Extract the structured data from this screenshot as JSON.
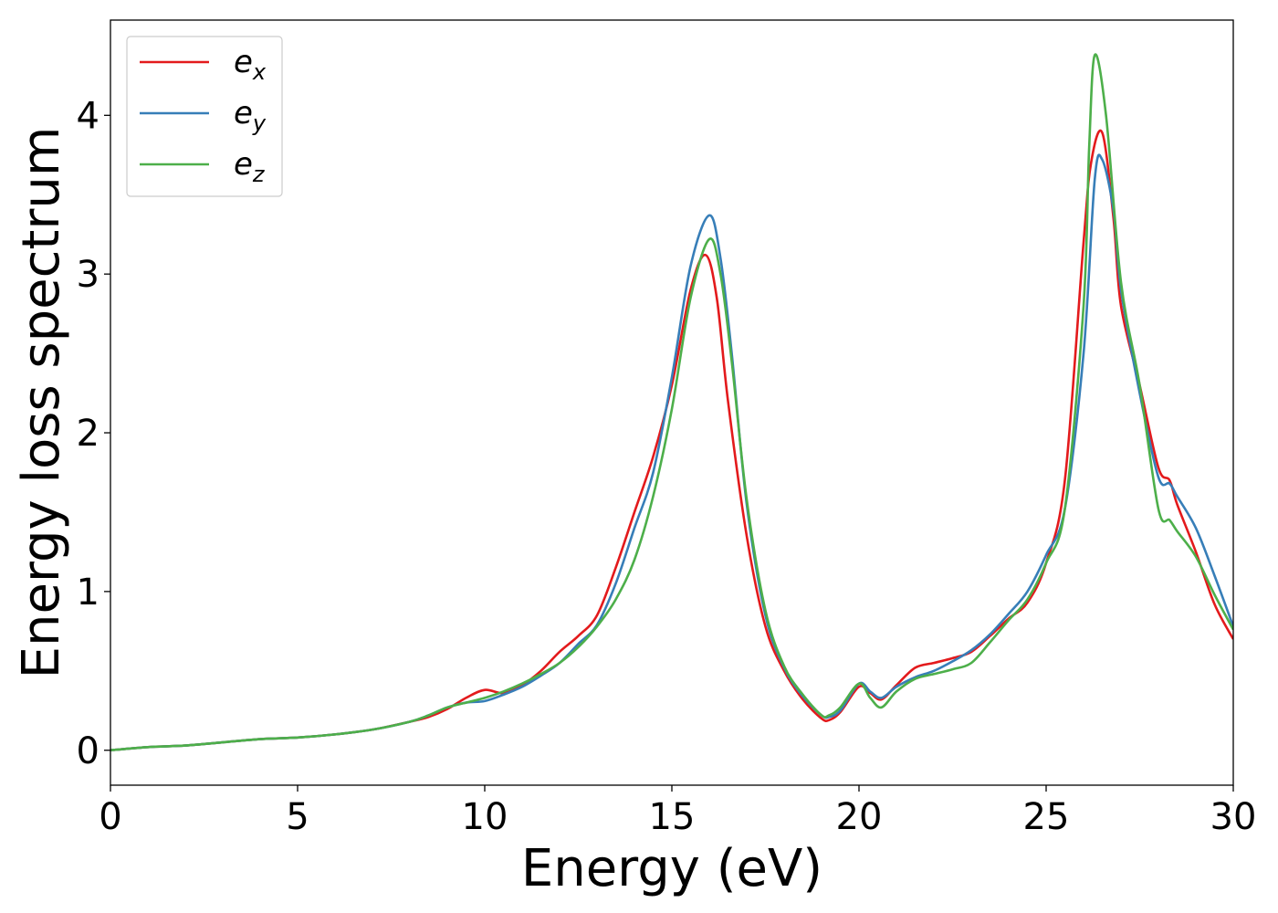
{
  "chart_data": {
    "type": "line",
    "title": "",
    "xlabel": "Energy (eV)",
    "ylabel": "Energy loss spectrum",
    "xlim": [
      0,
      30
    ],
    "ylim": [
      -0.22,
      4.6
    ],
    "xticks": [
      0,
      5,
      10,
      15,
      20,
      25,
      30
    ],
    "xtick_labels": [
      "0",
      "5",
      "10",
      "15",
      "20",
      "25",
      "30"
    ],
    "yticks": [
      0,
      1,
      2,
      3,
      4
    ],
    "ytick_labels": [
      "0",
      "1",
      "2",
      "3",
      "4"
    ],
    "grid": false,
    "legend_position": "top-left",
    "series": [
      {
        "name": "e_x",
        "label_base": "e",
        "label_sub": "x",
        "color": "#e31a1c",
        "x": [
          0,
          1,
          2,
          3,
          4,
          5,
          6,
          7,
          8,
          8.5,
          9,
          9.5,
          10,
          10.5,
          11,
          11.5,
          12,
          12.5,
          13,
          13.5,
          14,
          14.5,
          15,
          15.5,
          15.9,
          16.2,
          16.5,
          17,
          17.5,
          18,
          18.5,
          19,
          19.2,
          19.5,
          20,
          20.3,
          20.6,
          21,
          21.5,
          22,
          22.5,
          23,
          23.5,
          24,
          24.5,
          25,
          25.5,
          26,
          26.2,
          26.5,
          26.8,
          27,
          27.5,
          28,
          28.3,
          28.5,
          29,
          29.5,
          30
        ],
        "y": [
          0,
          0.02,
          0.03,
          0.05,
          0.07,
          0.08,
          0.1,
          0.13,
          0.18,
          0.21,
          0.26,
          0.33,
          0.38,
          0.36,
          0.41,
          0.5,
          0.62,
          0.72,
          0.85,
          1.15,
          1.5,
          1.85,
          2.3,
          2.9,
          3.12,
          2.85,
          2.2,
          1.35,
          0.78,
          0.5,
          0.32,
          0.2,
          0.19,
          0.24,
          0.4,
          0.36,
          0.32,
          0.41,
          0.52,
          0.55,
          0.58,
          0.62,
          0.72,
          0.83,
          0.93,
          1.18,
          1.7,
          3.2,
          3.7,
          3.89,
          3.35,
          2.8,
          2.3,
          1.78,
          1.7,
          1.55,
          1.25,
          0.92,
          0.7
        ]
      },
      {
        "name": "e_y",
        "label_base": "e",
        "label_sub": "y",
        "color": "#377eb8",
        "x": [
          0,
          1,
          2,
          3,
          4,
          5,
          6,
          7,
          8,
          8.5,
          9,
          9.5,
          10,
          10.5,
          11,
          11.5,
          12,
          12.5,
          13,
          13.5,
          14,
          14.5,
          15,
          15.5,
          16,
          16.3,
          16.6,
          17,
          17.5,
          18,
          18.5,
          19,
          19.2,
          19.5,
          20,
          20.3,
          20.6,
          21,
          21.5,
          22,
          22.5,
          23,
          23.5,
          24,
          24.5,
          25,
          25.5,
          26,
          26.3,
          26.5,
          26.8,
          27,
          27.5,
          28,
          28.3,
          28.5,
          29,
          29.5,
          30
        ],
        "y": [
          0,
          0.02,
          0.03,
          0.05,
          0.07,
          0.08,
          0.1,
          0.13,
          0.18,
          0.22,
          0.27,
          0.3,
          0.31,
          0.35,
          0.4,
          0.47,
          0.55,
          0.67,
          0.79,
          1.05,
          1.4,
          1.75,
          2.35,
          3.05,
          3.37,
          3.1,
          2.5,
          1.55,
          0.85,
          0.52,
          0.34,
          0.22,
          0.21,
          0.25,
          0.42,
          0.37,
          0.33,
          0.4,
          0.46,
          0.5,
          0.56,
          0.63,
          0.73,
          0.86,
          1.0,
          1.23,
          1.52,
          2.5,
          3.6,
          3.72,
          3.4,
          2.9,
          2.25,
          1.72,
          1.68,
          1.6,
          1.4,
          1.1,
          0.78
        ]
      },
      {
        "name": "e_z",
        "label_base": "e",
        "label_sub": "z",
        "color": "#4daf4a",
        "x": [
          0,
          1,
          2,
          3,
          4,
          5,
          6,
          7,
          8,
          8.5,
          9,
          9.5,
          10,
          10.5,
          11,
          11.5,
          12,
          12.5,
          13,
          13.5,
          14,
          14.5,
          15,
          15.5,
          16,
          16.3,
          16.6,
          17,
          17.5,
          18,
          18.5,
          19,
          19.2,
          19.5,
          20,
          20.3,
          20.6,
          21,
          21.5,
          22,
          22.5,
          23,
          23.5,
          24,
          24.5,
          25,
          25.5,
          26,
          26.15,
          26.3,
          26.6,
          27,
          27.5,
          28,
          28.3,
          28.5,
          29,
          29.5,
          30
        ],
        "y": [
          0,
          0.02,
          0.03,
          0.05,
          0.07,
          0.08,
          0.1,
          0.13,
          0.18,
          0.22,
          0.27,
          0.3,
          0.33,
          0.37,
          0.42,
          0.48,
          0.55,
          0.65,
          0.78,
          0.95,
          1.2,
          1.6,
          2.15,
          2.85,
          3.22,
          3.0,
          2.45,
          1.58,
          0.88,
          0.53,
          0.35,
          0.22,
          0.22,
          0.27,
          0.42,
          0.33,
          0.27,
          0.37,
          0.45,
          0.48,
          0.51,
          0.55,
          0.68,
          0.82,
          0.95,
          1.18,
          1.52,
          2.8,
          3.8,
          4.38,
          4.0,
          2.95,
          2.3,
          1.52,
          1.45,
          1.38,
          1.22,
          0.98,
          0.76
        ]
      }
    ]
  }
}
